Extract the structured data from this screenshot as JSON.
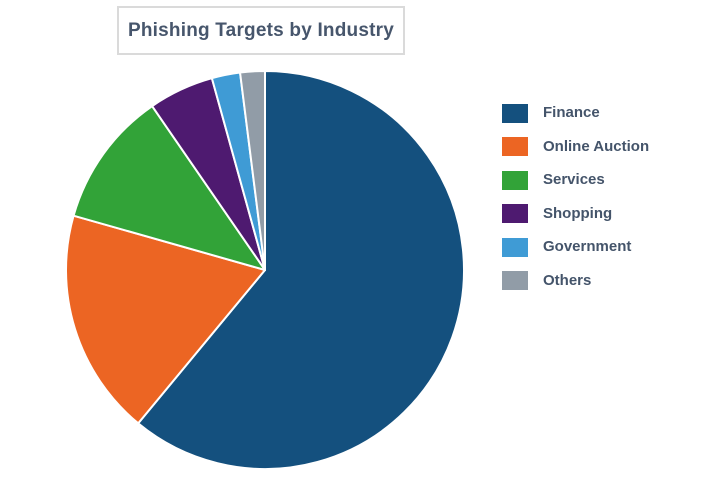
{
  "chart_data": {
    "type": "pie",
    "title": "Phishing Targets by Industry",
    "legend_position": "right",
    "start_angle_deg": 0,
    "direction": "clockwise",
    "unit": "percent",
    "slice_separator_color": "#FFFFFF",
    "categories": [
      "Finance",
      "Online Auction",
      "Services",
      "Shopping",
      "Government",
      "Others"
    ],
    "values": [
      61.0,
      18.4,
      11.0,
      5.3,
      2.3,
      2.0
    ],
    "series": [
      {
        "name": "Finance",
        "value": 61.0,
        "color": "#14507E"
      },
      {
        "name": "Online Auction",
        "value": 18.4,
        "color": "#EC6523"
      },
      {
        "name": "Services",
        "value": 11.0,
        "color": "#32A338"
      },
      {
        "name": "Shopping",
        "value": 5.3,
        "color": "#4E1A70"
      },
      {
        "name": "Government",
        "value": 2.3,
        "color": "#3F9BD5"
      },
      {
        "name": "Others",
        "value": 2.0,
        "color": "#919CA7"
      }
    ]
  },
  "title_box": {
    "border_color": "#DADADA",
    "text_color": "#47566C"
  }
}
